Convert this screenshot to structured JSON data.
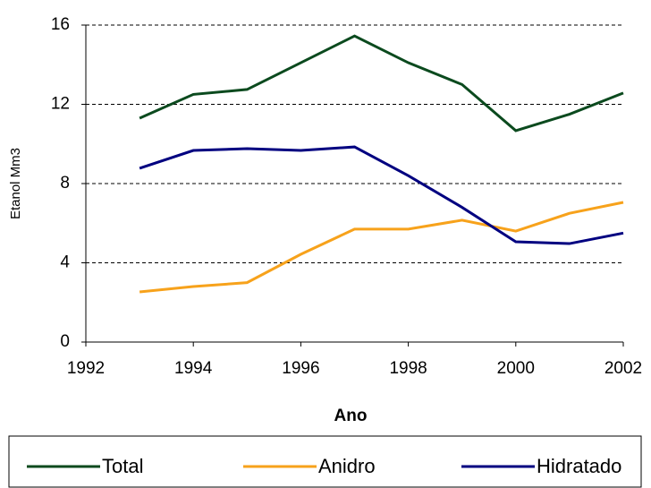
{
  "chart_data": {
    "type": "line",
    "x_label": "Ano",
    "y_label": "Etanol Mm3",
    "x": [
      1993,
      1994,
      1995,
      1996,
      1997,
      1998,
      1999,
      2000,
      2001,
      2002
    ],
    "series": [
      {
        "name": "Total",
        "color": "#0b4a1e",
        "values": [
          11.3,
          12.5,
          12.75,
          14.1,
          15.45,
          14.1,
          13.0,
          10.67,
          11.5,
          12.57
        ]
      },
      {
        "name": "Anidro",
        "color": "#f7a21b",
        "values": [
          2.53,
          2.8,
          3.0,
          4.43,
          5.7,
          5.7,
          6.15,
          5.6,
          6.5,
          7.05
        ]
      },
      {
        "name": "Hidratado",
        "color": "#000080",
        "values": [
          8.77,
          9.67,
          9.76,
          9.67,
          9.85,
          8.4,
          6.8,
          5.06,
          4.97,
          5.5
        ]
      }
    ],
    "xlim": [
      1992,
      2002
    ],
    "xticks": [
      1992,
      1994,
      1996,
      1998,
      2000,
      2002
    ],
    "ylim": [
      0,
      16
    ],
    "yticks": [
      0,
      4,
      8,
      12,
      16
    ],
    "grid": true,
    "legend": "bottom"
  }
}
